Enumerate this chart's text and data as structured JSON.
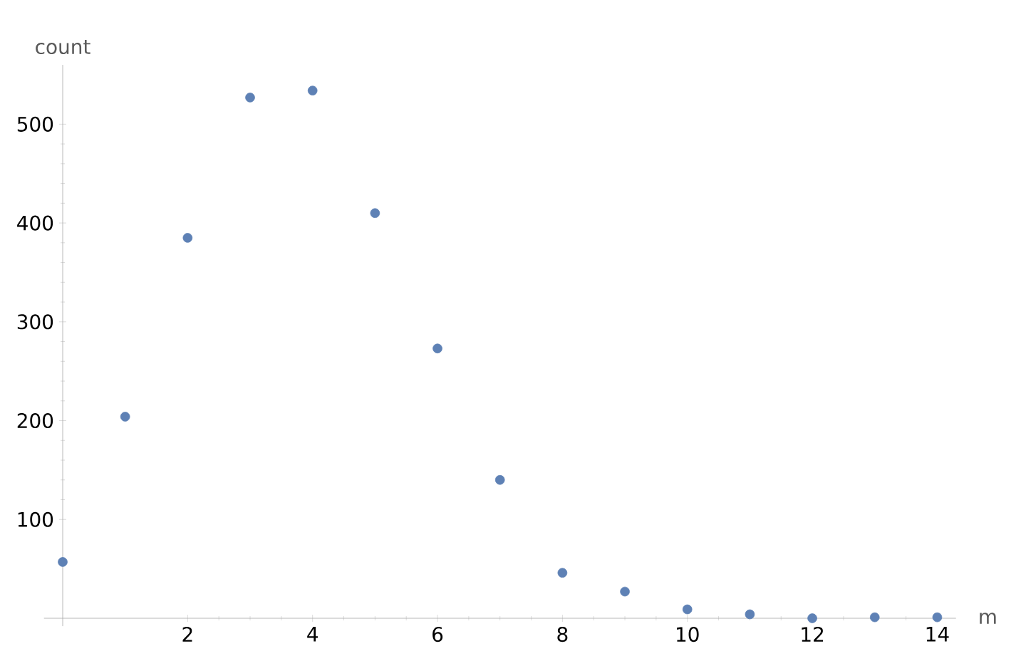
{
  "chart_data": {
    "type": "scatter",
    "xlabel": "m",
    "ylabel": "count",
    "x": [
      0,
      1,
      2,
      3,
      4,
      5,
      6,
      7,
      8,
      9,
      10,
      11,
      12,
      13,
      14
    ],
    "values": [
      57,
      204,
      385,
      527,
      534,
      410,
      273,
      140,
      46,
      27,
      9,
      4,
      0,
      1,
      1
    ],
    "color": "#5e81b5",
    "xlim": [
      -0.3,
      14.3
    ],
    "ylim": [
      -8,
      560
    ],
    "xticks": [
      2,
      4,
      6,
      8,
      10,
      12,
      14
    ],
    "yticks": [
      100,
      200,
      300,
      400,
      500
    ],
    "grid": false
  }
}
